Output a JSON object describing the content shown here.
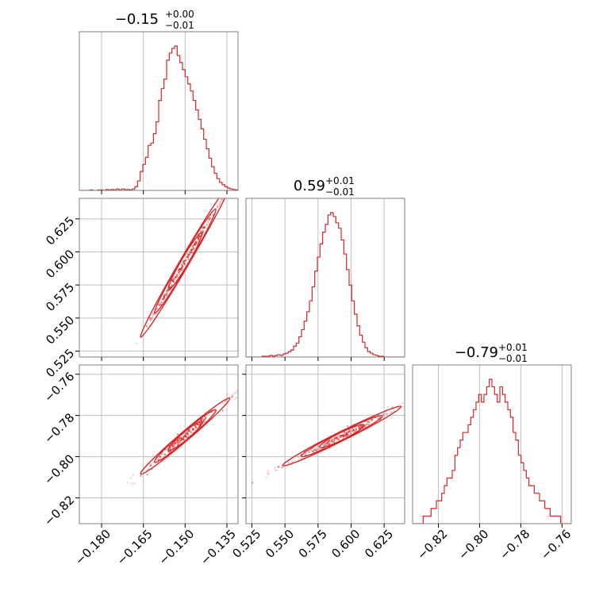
{
  "chart_data": {
    "type": "corner",
    "color": "#d62728",
    "grid": true,
    "parameters": [
      {
        "title": {
          "value": "−0.15",
          "upper": "+0.00",
          "lower": "−0.01"
        },
        "range": [
          -0.188,
          -0.131
        ],
        "ticks": [
          -0.18,
          -0.165,
          -0.15,
          -0.135
        ],
        "tick_labels": [
          "−0.180",
          "−0.165",
          "−0.150",
          "−0.135"
        ],
        "hist": [
          0,
          0,
          0,
          0,
          1,
          0,
          0,
          1,
          1,
          0,
          2,
          1,
          2,
          1,
          3,
          1,
          3,
          2,
          2,
          1,
          3,
          8,
          20,
          40,
          55,
          70,
          95,
          100,
          120,
          145,
          190,
          215,
          235,
          275,
          290,
          300,
          305,
          285,
          270,
          255,
          240,
          225,
          210,
          190,
          170,
          150,
          130,
          108,
          88,
          68,
          50,
          36,
          25,
          17,
          12,
          8,
          5,
          3,
          2,
          1
        ]
      },
      {
        "title": {
          "value": "0.59",
          "upper": "+0.01",
          "lower": "−0.01"
        },
        "range": [
          0.5205,
          0.6405
        ],
        "ticks": [
          0.525,
          0.55,
          0.575,
          0.6,
          0.625
        ],
        "tick_labels": [
          "0.525",
          "0.550",
          "0.575",
          "0.600",
          "0.625"
        ],
        "hist": [
          0,
          0,
          0,
          0,
          0,
          0,
          1,
          1,
          1,
          2,
          1,
          2,
          3,
          2,
          4,
          5,
          7,
          9,
          14,
          18,
          26,
          35,
          46,
          58,
          72,
          90,
          110,
          128,
          145,
          160,
          170,
          182,
          185,
          180,
          172,
          165,
          150,
          132,
          112,
          92,
          72,
          55,
          40,
          28,
          19,
          12,
          7,
          5,
          3,
          2,
          1,
          1,
          0,
          0,
          0,
          0,
          0,
          0,
          0,
          0
        ]
      },
      {
        "title": {
          "value": "−0.79",
          "upper": "+0.01",
          "lower": "−0.01"
        },
        "range": [
          -0.8325,
          -0.7555
        ],
        "ticks": [
          -0.82,
          -0.8,
          -0.78,
          -0.76
        ],
        "tick_labels": [
          "−0.82",
          "−0.80",
          "−0.78",
          "−0.76"
        ],
        "hist": [
          0,
          0,
          0,
          0,
          1,
          1,
          1,
          2,
          2,
          3,
          3,
          4,
          5,
          6,
          6,
          7,
          9,
          10,
          11,
          12,
          12,
          13,
          14,
          15,
          16,
          17,
          16,
          17,
          18,
          19,
          18,
          17,
          16,
          18,
          17,
          16,
          15,
          14,
          12,
          11,
          9,
          8,
          7,
          6,
          5,
          5,
          4,
          4,
          3,
          3,
          2,
          2,
          1,
          1,
          1,
          1,
          0,
          0,
          0,
          0
        ]
      }
    ],
    "pairs": [
      {
        "x": 0,
        "y": 1,
        "center": [
          -0.15,
          0.593
        ],
        "slope": 3.6,
        "spread_x": 0.01,
        "width": 0.0012
      },
      {
        "x": 0,
        "y": 2,
        "center": [
          -0.15,
          -0.79
        ],
        "slope": 1.15,
        "spread_x": 0.01,
        "width": 0.0012
      },
      {
        "x": 1,
        "y": 2,
        "center": [
          0.593,
          -0.79
        ],
        "slope": 0.32,
        "spread_x": 0.028,
        "width": 0.0011
      }
    ]
  }
}
